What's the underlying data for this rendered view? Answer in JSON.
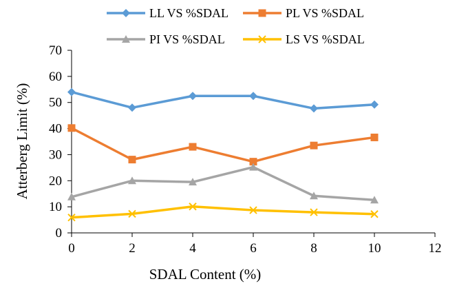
{
  "chart_data": {
    "type": "line",
    "xlabel": "SDAL Content (%)",
    "ylabel": "Atterberg Limit (%)",
    "xlim": [
      0,
      12
    ],
    "ylim": [
      0,
      70
    ],
    "xticks": [
      "0",
      "2",
      "4",
      "6",
      "8",
      "10",
      "12"
    ],
    "yticks": [
      "0",
      "10",
      "20",
      "30",
      "40",
      "50",
      "60",
      "70"
    ],
    "grid": false,
    "legend_position": "top",
    "series": [
      {
        "name": "LL VS %SDAL",
        "color": "#5b9bd5",
        "marker": "diamond",
        "x": [
          0,
          2,
          4,
          6,
          8,
          10
        ],
        "y": [
          54,
          48,
          52.5,
          52.5,
          47.7,
          49.2
        ]
      },
      {
        "name": "PL VS %SDAL",
        "color": "#ed7d31",
        "marker": "square",
        "x": [
          0,
          2,
          4,
          6,
          8,
          10
        ],
        "y": [
          40.2,
          28.1,
          33,
          27.3,
          33.5,
          36.6
        ]
      },
      {
        "name": "PI VS %SDAL",
        "color": "#a5a5a5",
        "marker": "triangle",
        "x": [
          0,
          2,
          4,
          6,
          8,
          10
        ],
        "y": [
          13.8,
          20,
          19.5,
          25.2,
          14.2,
          12.6
        ]
      },
      {
        "name": "LS VS %SDAL",
        "color": "#ffc000",
        "marker": "x",
        "x": [
          0,
          2,
          4,
          6,
          8,
          10
        ],
        "y": [
          5.9,
          7.3,
          10.1,
          8.7,
          7.9,
          7.2
        ]
      }
    ]
  }
}
